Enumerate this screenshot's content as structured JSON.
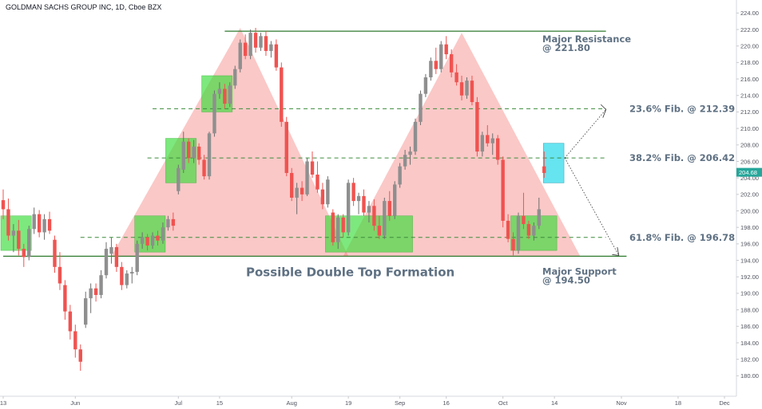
{
  "chart_data": {
    "type": "candlestick",
    "title": "GOLDMAN SACHS GROUP INC, 1D, Cboe BZX",
    "ylim": [
      178,
      225
    ],
    "y_ticks": [
      180,
      182,
      184,
      186,
      188,
      190,
      192,
      194,
      196,
      198,
      200,
      202,
      204,
      206,
      208,
      210,
      212,
      214,
      216,
      218,
      220,
      222,
      224
    ],
    "x_ticks": [
      {
        "label": "13",
        "i": 0
      },
      {
        "label": "Jun",
        "i": 14
      },
      {
        "label": "Jul",
        "i": 34
      },
      {
        "label": "15",
        "i": 42
      },
      {
        "label": "Aug",
        "i": 56
      },
      {
        "label": "19",
        "i": 67
      },
      {
        "label": "Sep",
        "i": 77
      },
      {
        "label": "16",
        "i": 86
      },
      {
        "label": "Oct",
        "i": 97
      },
      {
        "label": "14",
        "i": 107
      },
      {
        "label": "Nov",
        "i": 120
      },
      {
        "label": "18",
        "i": 131
      },
      {
        "label": "Dec",
        "i": 140
      }
    ],
    "bars_total": 141,
    "last_price": "204.68",
    "colors": {
      "up": "#26a69a",
      "down": "#ef5350",
      "up_wick": "#6e6e6e"
    },
    "candles": [
      [
        201.3,
        202.6,
        199.0,
        200.2
      ],
      [
        200.2,
        201.5,
        196.4,
        197.0
      ],
      [
        197.0,
        198.4,
        195.0,
        197.6
      ],
      [
        197.6,
        198.9,
        194.6,
        195.4
      ],
      [
        195.4,
        196.0,
        193.2,
        194.4
      ],
      [
        194.4,
        198.2,
        194.0,
        197.8
      ],
      [
        197.8,
        200.4,
        197.2,
        199.6
      ],
      [
        199.6,
        200.1,
        196.8,
        197.4
      ],
      [
        197.4,
        199.6,
        196.5,
        199.0
      ],
      [
        199.0,
        199.9,
        197.2,
        197.6
      ],
      [
        196.5,
        197.0,
        192.5,
        193.2
      ],
      [
        193.2,
        195.0,
        190.4,
        191.2
      ],
      [
        191.0,
        191.6,
        186.8,
        187.8
      ],
      [
        187.8,
        188.6,
        184.4,
        185.4
      ],
      [
        185.4,
        186.2,
        182.2,
        183.2
      ],
      [
        183.2,
        183.8,
        180.6,
        181.7
      ],
      [
        186.2,
        190.2,
        185.8,
        189.4
      ],
      [
        189.4,
        191.2,
        187.6,
        190.6
      ],
      [
        190.6,
        191.2,
        189.0,
        189.8
      ],
      [
        189.8,
        192.8,
        189.4,
        192.2
      ],
      [
        192.2,
        196.2,
        191.8,
        195.4
      ],
      [
        194.8,
        196.8,
        193.6,
        195.6
      ],
      [
        195.6,
        196.0,
        192.6,
        193.2
      ],
      [
        193.2,
        193.8,
        190.4,
        191.0
      ],
      [
        191.0,
        192.8,
        190.6,
        192.4
      ],
      [
        192.4,
        193.2,
        191.2,
        192.6
      ],
      [
        192.6,
        196.4,
        192.2,
        196.0
      ],
      [
        196.0,
        197.4,
        195.4,
        196.8
      ],
      [
        196.8,
        197.2,
        195.2,
        195.8
      ],
      [
        195.8,
        197.4,
        195.4,
        197.0
      ],
      [
        197.0,
        197.6,
        195.8,
        196.4
      ],
      [
        196.4,
        198.6,
        196.0,
        198.0
      ],
      [
        198.0,
        199.4,
        197.6,
        199.0
      ],
      [
        199.0,
        199.8,
        197.6,
        198.2
      ],
      [
        202.4,
        205.6,
        202.0,
        205.2
      ],
      [
        205.0,
        209.6,
        204.6,
        208.4
      ],
      [
        208.4,
        208.8,
        205.8,
        206.4
      ],
      [
        206.4,
        208.6,
        205.8,
        207.8
      ],
      [
        207.8,
        208.2,
        205.6,
        206.2
      ],
      [
        206.2,
        206.8,
        203.8,
        204.2
      ],
      [
        204.2,
        209.6,
        203.8,
        209.4
      ],
      [
        209.4,
        214.6,
        209.0,
        214.2
      ],
      [
        214.2,
        215.6,
        213.6,
        214.8
      ],
      [
        214.8,
        215.4,
        212.4,
        213.0
      ],
      [
        213.0,
        215.6,
        212.6,
        215.2
      ],
      [
        215.2,
        217.6,
        214.8,
        217.2
      ],
      [
        217.2,
        220.8,
        216.8,
        220.4
      ],
      [
        220.4,
        221.4,
        218.4,
        218.8
      ],
      [
        218.8,
        222.0,
        218.4,
        221.6
      ],
      [
        221.6,
        222.2,
        219.2,
        219.8
      ],
      [
        219.8,
        221.6,
        219.4,
        221.2
      ],
      [
        221.2,
        221.8,
        218.8,
        219.4
      ],
      [
        219.4,
        220.6,
        218.6,
        220.2
      ],
      [
        220.2,
        220.8,
        217.0,
        217.4
      ],
      [
        217.4,
        218.0,
        210.2,
        210.8
      ],
      [
        210.8,
        211.4,
        204.2,
        204.6
      ],
      [
        204.6,
        205.2,
        201.2,
        201.6
      ],
      [
        201.6,
        203.4,
        199.6,
        202.8
      ],
      [
        202.8,
        203.6,
        201.2,
        202.0
      ],
      [
        202.0,
        206.4,
        201.8,
        206.0
      ],
      [
        206.0,
        207.2,
        204.0,
        204.4
      ],
      [
        204.4,
        206.0,
        202.2,
        202.6
      ],
      [
        202.6,
        203.4,
        200.2,
        200.8
      ],
      [
        200.8,
        204.2,
        200.4,
        203.8
      ],
      [
        199.8,
        200.2,
        195.8,
        196.2
      ],
      [
        196.2,
        199.6,
        195.4,
        199.2
      ],
      [
        199.2,
        199.6,
        196.8,
        197.4
      ],
      [
        197.4,
        203.8,
        197.0,
        203.4
      ],
      [
        203.4,
        204.0,
        200.6,
        201.2
      ],
      [
        201.2,
        202.2,
        199.6,
        201.8
      ],
      [
        201.8,
        202.6,
        199.4,
        199.8
      ],
      [
        199.8,
        201.2,
        198.6,
        200.6
      ],
      [
        200.6,
        201.4,
        197.6,
        198.2
      ],
      [
        198.2,
        199.4,
        196.6,
        197.0
      ],
      [
        197.0,
        201.6,
        196.6,
        201.2
      ],
      [
        201.2,
        202.4,
        198.8,
        199.4
      ],
      [
        199.4,
        203.6,
        199.0,
        203.2
      ],
      [
        203.2,
        205.8,
        202.8,
        205.4
      ],
      [
        205.4,
        207.4,
        205.0,
        206.8
      ],
      [
        206.8,
        207.8,
        205.6,
        207.2
      ],
      [
        207.2,
        211.2,
        206.8,
        210.8
      ],
      [
        210.8,
        214.6,
        210.4,
        214.2
      ],
      [
        214.2,
        216.6,
        213.8,
        216.2
      ],
      [
        216.2,
        218.6,
        215.8,
        218.2
      ],
      [
        218.2,
        219.8,
        216.6,
        217.2
      ],
      [
        217.2,
        220.6,
        216.8,
        220.2
      ],
      [
        220.2,
        221.2,
        218.4,
        219.0
      ],
      [
        219.0,
        219.6,
        216.2,
        216.8
      ],
      [
        216.8,
        217.8,
        215.2,
        215.6
      ],
      [
        215.6,
        216.4,
        213.4,
        214.0
      ],
      [
        214.0,
        216.2,
        213.6,
        215.8
      ],
      [
        215.8,
        216.4,
        212.8,
        213.2
      ],
      [
        213.2,
        213.8,
        206.6,
        207.2
      ],
      [
        207.2,
        209.6,
        206.6,
        209.2
      ],
      [
        209.2,
        210.4,
        207.8,
        208.2
      ],
      [
        208.2,
        209.4,
        206.8,
        208.8
      ],
      [
        208.8,
        209.2,
        205.6,
        206.2
      ],
      [
        206.2,
        206.6,
        198.0,
        198.8
      ],
      [
        198.8,
        199.6,
        196.2,
        196.6
      ],
      [
        196.6,
        197.4,
        194.6,
        195.2
      ],
      [
        195.2,
        199.8,
        194.8,
        199.4
      ],
      [
        199.4,
        202.2,
        197.8,
        198.4
      ],
      [
        198.4,
        198.8,
        196.6,
        197.0
      ],
      [
        197.0,
        198.6,
        196.4,
        198.2
      ],
      [
        198.2,
        201.6,
        197.8,
        200.2
      ],
      [
        205.4,
        207.2,
        204.0,
        204.6
      ]
    ]
  },
  "annotations": {
    "resistance": {
      "level": 221.8,
      "label_line1": "Major Resistance",
      "label_line2": "@ 221.80"
    },
    "support": {
      "level": 194.5,
      "label_line1": "Major Support",
      "label_line2": "@ 194.50"
    },
    "fibs": [
      {
        "level": 212.39,
        "label": "23.6% Fib. @ 212.39"
      },
      {
        "level": 206.42,
        "label": "38.2% Fib. @ 206.42"
      },
      {
        "level": 196.78,
        "label": "61.8% Fib. @ 196.78"
      }
    ],
    "pattern_label": "Possible Double Top Formation",
    "triangles": [
      {
        "base_left_i": 21,
        "base_right_i": 67,
        "apex_i": 46,
        "apex_price": 222.2
      },
      {
        "base_left_i": 66,
        "base_right_i": 112,
        "apex_i": 89,
        "apex_price": 221.6
      }
    ],
    "green_zones": [
      {
        "from_i": 0,
        "to_i": 5,
        "low": 195.2,
        "high": 199.4
      },
      {
        "from_i": 26,
        "to_i": 31,
        "low": 195.0,
        "high": 199.4
      },
      {
        "from_i": 32,
        "to_i": 37,
        "low": 203.4,
        "high": 208.8
      },
      {
        "from_i": 39,
        "to_i": 44,
        "low": 212.0,
        "high": 216.4
      },
      {
        "from_i": 63,
        "to_i": 79,
        "low": 195.0,
        "high": 199.4
      },
      {
        "from_i": 99,
        "to_i": 107,
        "low": 195.2,
        "high": 199.4
      }
    ],
    "projection_box": {
      "from_i": 105,
      "to_i": 109,
      "low": 203.4,
      "high": 208.2
    }
  }
}
